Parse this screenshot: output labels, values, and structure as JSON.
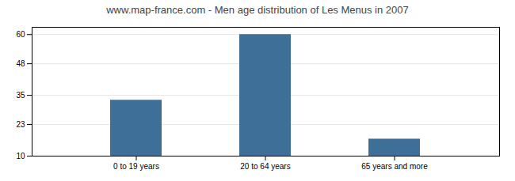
{
  "chart_data": {
    "type": "bar",
    "title": "www.map-france.com - Men age distribution of Les Menus in 2007",
    "categories": [
      "0 to 19 years",
      "20 to 64 years",
      "65 years and more"
    ],
    "values": [
      33,
      60,
      17
    ],
    "color": "#3d6f99",
    "ylim": [
      10,
      63
    ],
    "yticks": [
      10,
      23,
      35,
      48,
      60
    ],
    "grid": true
  }
}
